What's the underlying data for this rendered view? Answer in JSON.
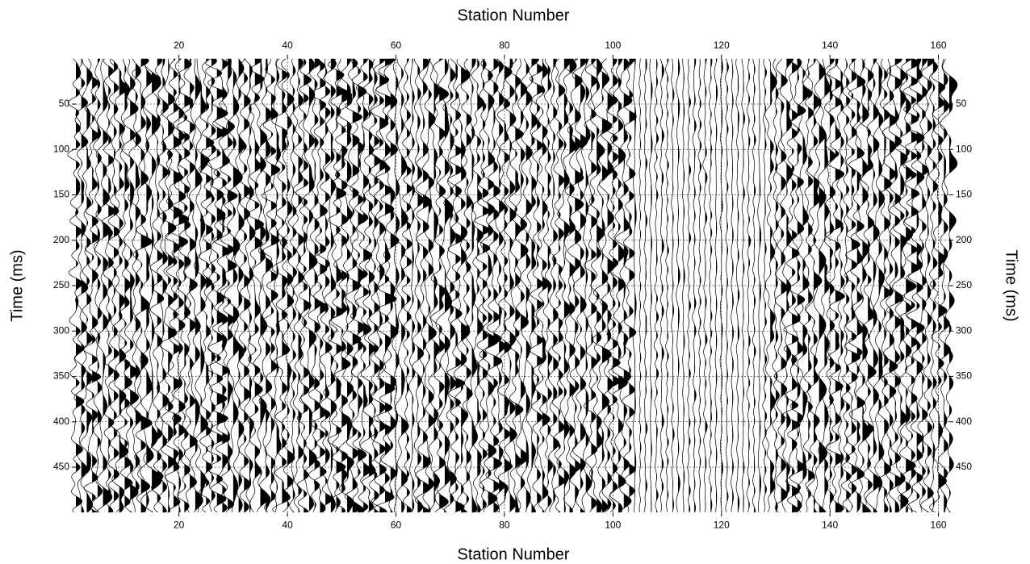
{
  "chart_data": {
    "type": "seismic-wiggle",
    "xlabel_top": "Station Number",
    "xlabel_bottom": "Station Number",
    "ylabel_left": "Time (ms)",
    "ylabel_right": "Time (ms)",
    "xlim": [
      1,
      162
    ],
    "xticks": [
      20,
      40,
      60,
      80,
      100,
      120,
      140,
      160
    ],
    "ylim": [
      0,
      500
    ],
    "yticks": [
      50,
      100,
      150,
      200,
      250,
      300,
      350,
      400,
      450
    ],
    "y_inverted": true,
    "grid": true,
    "color": "#000000"
  }
}
